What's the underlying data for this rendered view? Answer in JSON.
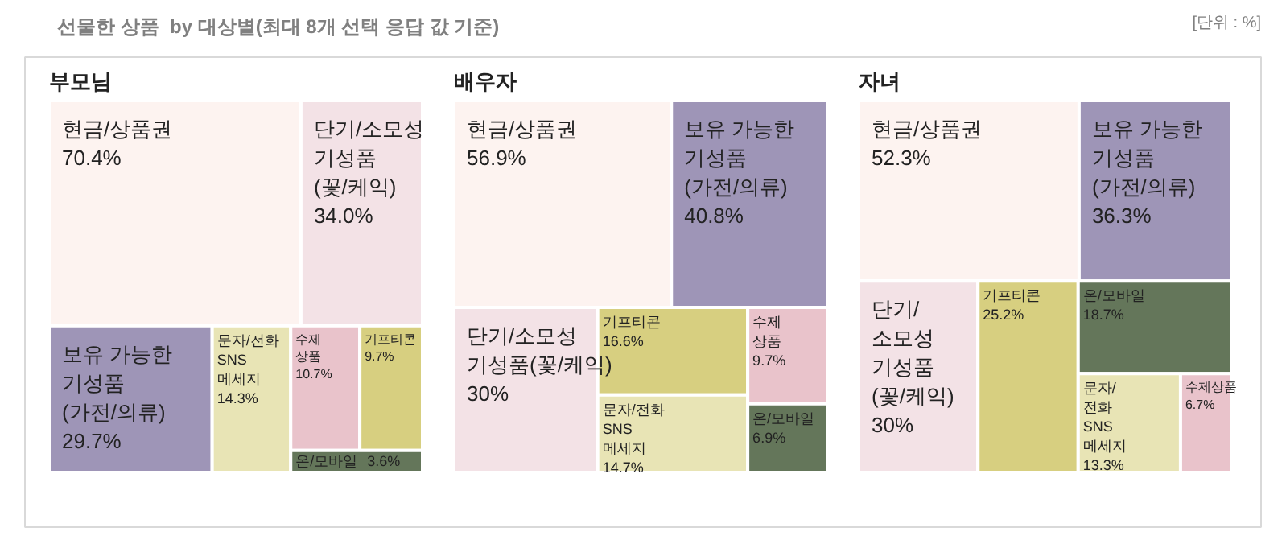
{
  "chart_data": [
    {
      "type": "other",
      "title": "부모님",
      "annotations": [
        "선물한 상품_by 대상별(최대 8개 선택 응답 값 기준)",
        "[단위 : %]"
      ],
      "categories": [
        "현금/상품권",
        "단기/소모성\n기성품\n(꽃/케익)",
        "보유 가능한\n기성품\n(가전/의류)",
        "문자/전화\nSNS\n메세지",
        "수제\n상품",
        "기프티콘",
        "온/모바일"
      ],
      "values": [
        70.4,
        34.0,
        29.7,
        14.3,
        10.7,
        9.7,
        3.6
      ],
      "value_labels": [
        "70.4%",
        "34.0%",
        "29.7%",
        "14.3%",
        "10.7%",
        "9.7%",
        "3.6%"
      ],
      "colors": [
        "#fdf3f0",
        "#f3e2e6",
        "#9e95b7",
        "#e8e4b5",
        "#e9c3cb",
        "#d7cf80",
        "#64765a"
      ]
    },
    {
      "type": "other",
      "title": "배우자",
      "categories": [
        "현금/상품권",
        "보유 가능한\n기성품\n(가전/의류)",
        "단기/소모성\n기성품(꽃/케익)",
        "기프티콘",
        "문자/전화\nSNS\n메세지",
        "수제\n상품",
        "온/모바일"
      ],
      "values": [
        56.9,
        40.8,
        30,
        16.6,
        14.7,
        9.7,
        6.9
      ],
      "value_labels": [
        "56.9%",
        "40.8%",
        "30%",
        "16.6%",
        "14.7%",
        "9.7%",
        "6.9%"
      ],
      "colors": [
        "#fdf3f0",
        "#9e95b7",
        "#f3e2e6",
        "#d7cf80",
        "#e8e4b5",
        "#e9c3cb",
        "#64765a"
      ]
    },
    {
      "type": "other",
      "title": "자녀",
      "categories": [
        "현금/상품권",
        "보유 가능한\n기성품\n(가전/의류)",
        "단기/\n소모성\n기성품\n(꽃/케익)",
        "기프티콘",
        "온/모바일",
        "문자/\n전화\nSNS\n메세지",
        "수제상품"
      ],
      "values": [
        52.3,
        36.3,
        30,
        25.2,
        18.7,
        13.3,
        6.7
      ],
      "value_labels": [
        "52.3%",
        "36.3%",
        "30%",
        "25.2%",
        "18.7%",
        "13.3%",
        "6.7%"
      ],
      "colors": [
        "#fdf3f0",
        "#9e95b7",
        "#f3e2e6",
        "#d7cf80",
        "#64765a",
        "#e8e4b5",
        "#e9c3cb"
      ]
    }
  ]
}
